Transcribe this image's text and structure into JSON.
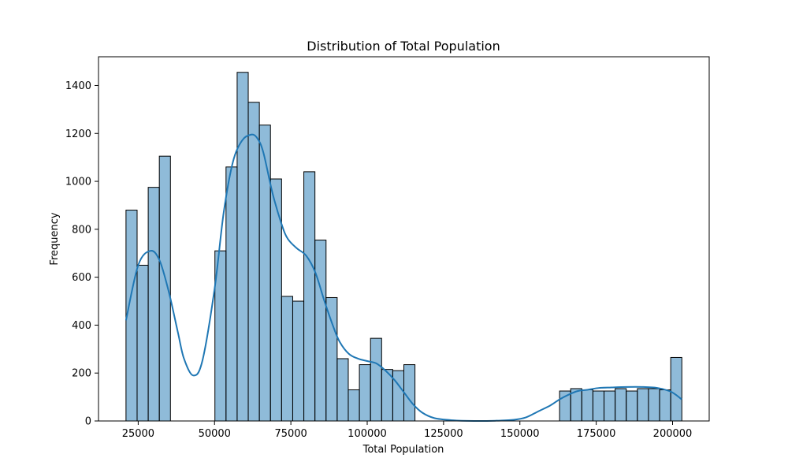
{
  "chart_data": {
    "type": "bar",
    "subtype": "histogram",
    "title": "Distribution of Total Population",
    "xlabel": "Total Population",
    "ylabel": "Frequency",
    "xlim": [
      12000,
      212000
    ],
    "ylim": [
      0,
      1520
    ],
    "x_ticks": [
      25000,
      50000,
      75000,
      100000,
      125000,
      150000,
      175000,
      200000
    ],
    "y_ticks": [
      0,
      200,
      400,
      600,
      800,
      1000,
      1200,
      1400
    ],
    "grid": false,
    "bar_color": "#1f77b4",
    "bins": [
      {
        "start": 21000,
        "end": 24640,
        "value": 880
      },
      {
        "start": 24640,
        "end": 28280,
        "value": 650
      },
      {
        "start": 28280,
        "end": 31920,
        "value": 975
      },
      {
        "start": 31920,
        "end": 35560,
        "value": 1105
      },
      {
        "start": 50120,
        "end": 53760,
        "value": 710
      },
      {
        "start": 53760,
        "end": 57400,
        "value": 1060
      },
      {
        "start": 57400,
        "end": 61040,
        "value": 1455
      },
      {
        "start": 61040,
        "end": 64680,
        "value": 1330
      },
      {
        "start": 64680,
        "end": 68320,
        "value": 1235
      },
      {
        "start": 68320,
        "end": 71960,
        "value": 1010
      },
      {
        "start": 71960,
        "end": 75600,
        "value": 520
      },
      {
        "start": 75600,
        "end": 79240,
        "value": 500
      },
      {
        "start": 79240,
        "end": 82880,
        "value": 1040
      },
      {
        "start": 82880,
        "end": 86520,
        "value": 755
      },
      {
        "start": 86520,
        "end": 90160,
        "value": 515
      },
      {
        "start": 90160,
        "end": 93800,
        "value": 260
      },
      {
        "start": 93800,
        "end": 97440,
        "value": 130
      },
      {
        "start": 97440,
        "end": 101080,
        "value": 235
      },
      {
        "start": 101080,
        "end": 104720,
        "value": 345
      },
      {
        "start": 104720,
        "end": 108360,
        "value": 215
      },
      {
        "start": 108360,
        "end": 112000,
        "value": 210
      },
      {
        "start": 112000,
        "end": 115640,
        "value": 235
      },
      {
        "start": 163000,
        "end": 166640,
        "value": 125
      },
      {
        "start": 166640,
        "end": 170280,
        "value": 135
      },
      {
        "start": 170280,
        "end": 173920,
        "value": 130
      },
      {
        "start": 173920,
        "end": 177560,
        "value": 125
      },
      {
        "start": 177560,
        "end": 181200,
        "value": 125
      },
      {
        "start": 181200,
        "end": 184840,
        "value": 135
      },
      {
        "start": 184840,
        "end": 188480,
        "value": 125
      },
      {
        "start": 188480,
        "end": 192120,
        "value": 135
      },
      {
        "start": 192120,
        "end": 195760,
        "value": 135
      },
      {
        "start": 195760,
        "end": 199400,
        "value": 130
      },
      {
        "start": 199400,
        "end": 203040,
        "value": 265
      }
    ],
    "kde": {
      "color": "#1f77b4",
      "x": [
        21000,
        25000,
        29000,
        32000,
        35000,
        38000,
        40000,
        43000,
        46000,
        50000,
        53000,
        56000,
        59000,
        62000,
        64000,
        66000,
        69000,
        72000,
        74000,
        77000,
        80000,
        83000,
        86000,
        89000,
        91000,
        94000,
        97000,
        100000,
        103000,
        106000,
        109000,
        112000,
        115000,
        118000,
        122000,
        128000,
        135000,
        142000,
        148000,
        152000,
        156000,
        160000,
        163000,
        166000,
        169000,
        172000,
        176000,
        180000,
        185000,
        190000,
        195000,
        199000,
        201000,
        203000
      ],
      "y": [
        420,
        650,
        710,
        670,
        540,
        370,
        260,
        190,
        250,
        550,
        870,
        1080,
        1170,
        1195,
        1180,
        1120,
        950,
        820,
        760,
        720,
        690,
        620,
        500,
        390,
        330,
        280,
        260,
        250,
        240,
        210,
        170,
        120,
        70,
        35,
        12,
        3,
        0,
        1,
        5,
        15,
        40,
        65,
        90,
        110,
        125,
        130,
        138,
        140,
        142,
        142,
        138,
        125,
        110,
        90
      ]
    }
  }
}
